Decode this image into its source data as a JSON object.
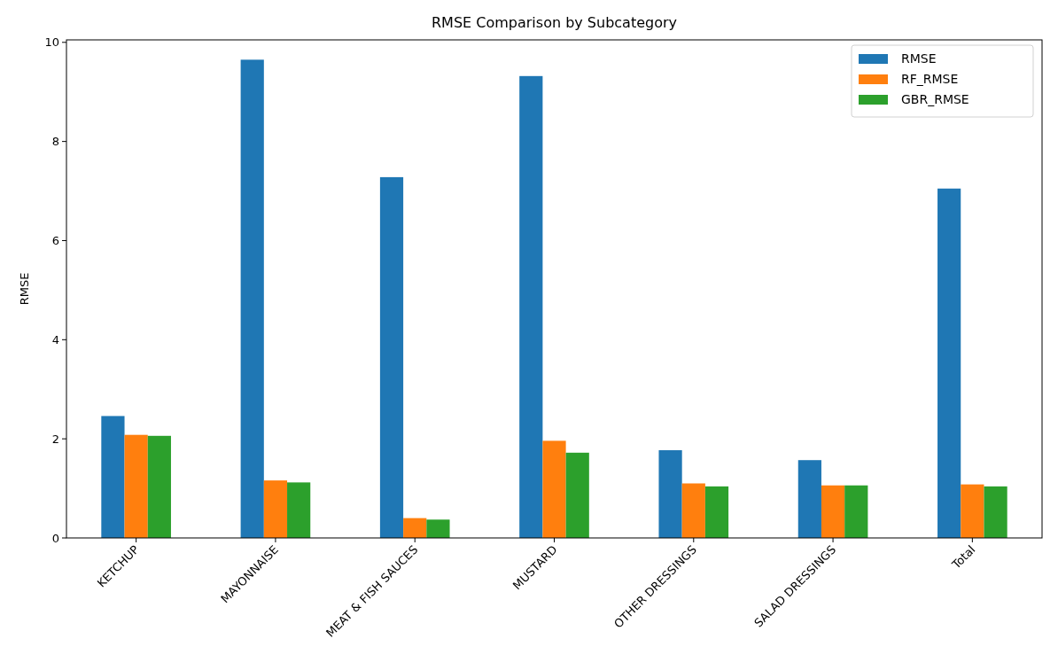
{
  "chart_data": {
    "type": "bar",
    "title": "RMSE Comparison by Subcategory",
    "ylabel": "RMSE",
    "categories": [
      "KETCHUP",
      "MAYONNAISE",
      "MEAT & FISH SAUCES",
      "MUSTARD",
      "OTHER DRESSINGS",
      "SALAD DRESSINGS",
      "Total"
    ],
    "series": [
      {
        "name": "RMSE",
        "color": "#1f77b4",
        "values": [
          2.46,
          9.65,
          7.28,
          9.32,
          1.77,
          1.57,
          7.05
        ]
      },
      {
        "name": "RF_RMSE",
        "color": "#ff7f0e",
        "values": [
          2.08,
          1.16,
          0.4,
          1.96,
          1.1,
          1.06,
          1.08
        ]
      },
      {
        "name": "GBR_RMSE",
        "color": "#2ca02c",
        "values": [
          2.06,
          1.12,
          0.37,
          1.72,
          1.04,
          1.06,
          1.04
        ]
      }
    ],
    "ylim": [
      0,
      10.05
    ],
    "yticks": [
      0,
      2,
      4,
      6,
      8,
      10
    ],
    "grid": false,
    "legend": "top right"
  }
}
